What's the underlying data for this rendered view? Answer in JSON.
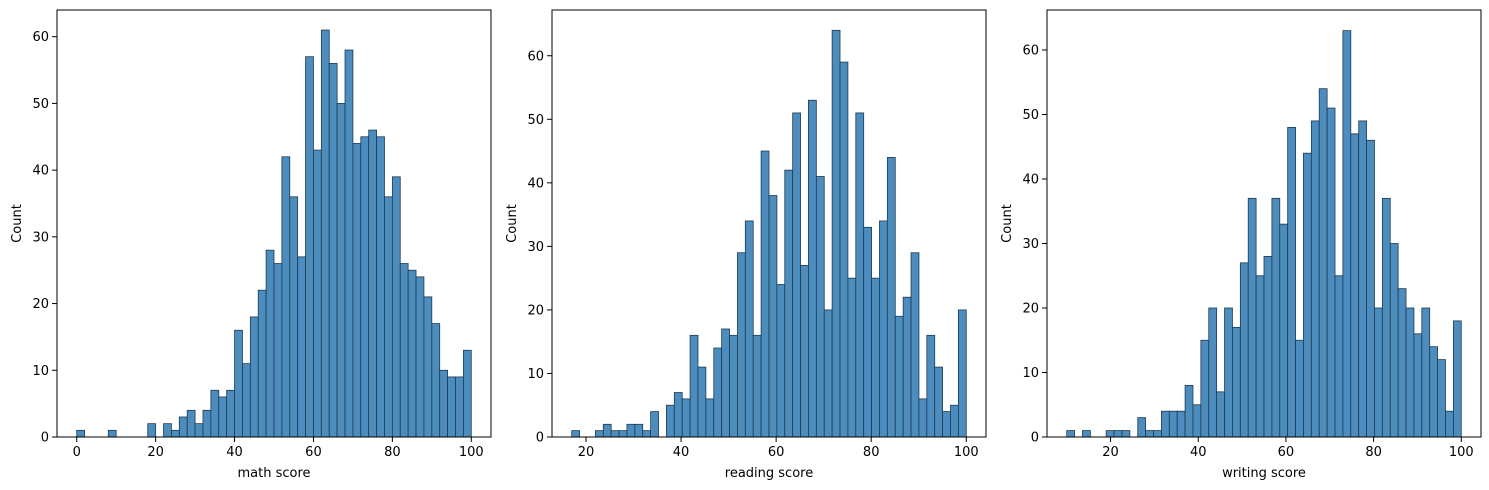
{
  "chart_data": [
    {
      "type": "bar",
      "xlabel": "math score",
      "ylabel": "Count",
      "xlim": [
        -5,
        105
      ],
      "ylim": [
        0,
        64
      ],
      "xticks": [
        0,
        20,
        40,
        60,
        80,
        100
      ],
      "yticks": [
        0,
        10,
        20,
        30,
        40,
        50,
        60
      ],
      "bin_start": 0,
      "bin_width": 2,
      "counts": [
        1,
        0,
        0,
        0,
        1,
        0,
        0,
        0,
        0,
        2,
        0,
        2,
        1,
        3,
        4,
        2,
        4,
        7,
        6,
        7,
        16,
        11,
        18,
        22,
        28,
        26,
        42,
        36,
        27,
        57,
        43,
        61,
        56,
        50,
        58,
        44,
        45,
        46,
        45,
        36,
        39,
        26,
        25,
        24,
        21,
        17,
        10,
        9,
        9,
        13
      ],
      "bar_color": "#4c8dbd",
      "edge_color": "#1f3a52"
    },
    {
      "type": "bar",
      "xlabel": "reading score",
      "ylabel": "Count",
      "xlim": [
        12.85,
        104.15
      ],
      "ylim": [
        0,
        67.2
      ],
      "xticks": [
        20,
        40,
        60,
        80,
        100
      ],
      "yticks": [
        0,
        10,
        20,
        30,
        40,
        50,
        60
      ],
      "bin_start": 17,
      "bin_width": 1.66,
      "counts": [
        1,
        0,
        0,
        1,
        2,
        1,
        1,
        2,
        2,
        1,
        4,
        0,
        5,
        7,
        6,
        16,
        11,
        6,
        14,
        17,
        16,
        29,
        34,
        16,
        45,
        38,
        24,
        42,
        51,
        27,
        53,
        41,
        20,
        64,
        59,
        25,
        51,
        33,
        25,
        34,
        44,
        19,
        22,
        29,
        6,
        16,
        11,
        4,
        5,
        20
      ],
      "bar_color": "#4c8dbd",
      "edge_color": "#1f3a52"
    },
    {
      "type": "bar",
      "xlabel": "writing score",
      "ylabel": "Count",
      "xlim": [
        5.5,
        104.5
      ],
      "ylim": [
        0,
        66.2
      ],
      "xticks": [
        20,
        40,
        60,
        80,
        100
      ],
      "yticks": [
        0,
        10,
        20,
        30,
        40,
        50,
        60
      ],
      "bin_start": 10,
      "bin_width": 1.8,
      "counts": [
        1,
        0,
        1,
        0,
        0,
        1,
        1,
        1,
        0,
        3,
        1,
        1,
        4,
        4,
        4,
        8,
        5,
        15,
        20,
        7,
        20,
        17,
        27,
        37,
        25,
        28,
        37,
        33,
        48,
        15,
        44,
        49,
        54,
        51,
        25,
        63,
        47,
        49,
        46,
        20,
        37,
        30,
        23,
        20,
        16,
        20,
        14,
        12,
        4,
        18
      ],
      "bar_color": "#4c8dbd",
      "edge_color": "#1f3a52"
    }
  ]
}
